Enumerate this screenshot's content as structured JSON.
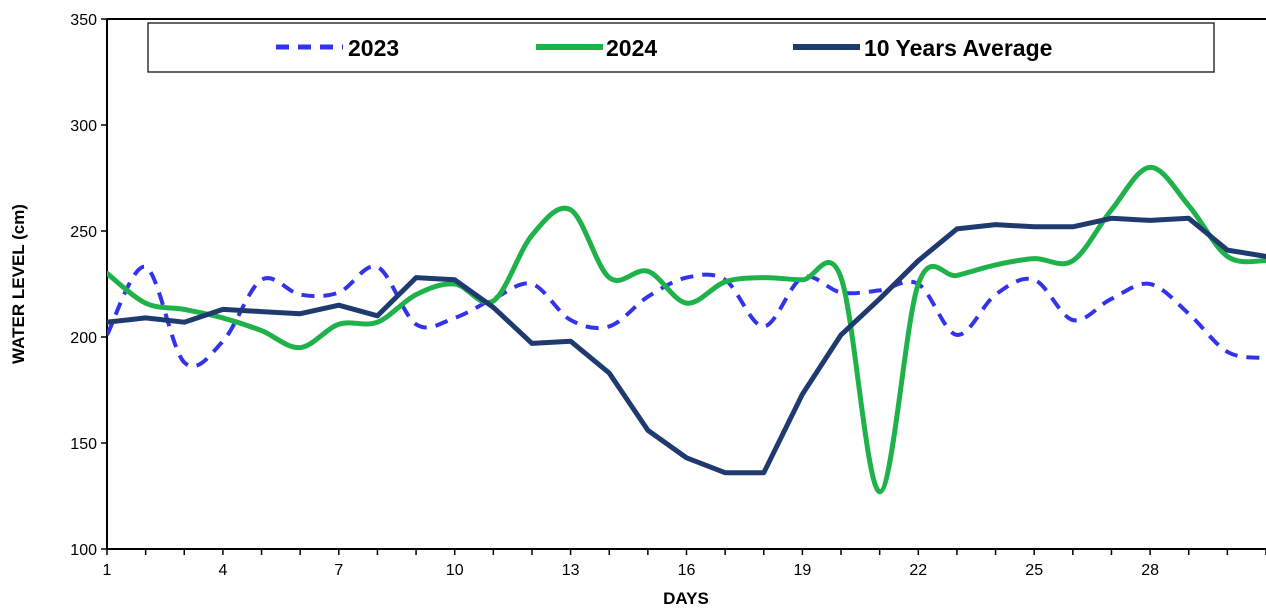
{
  "chart_data": {
    "type": "line",
    "title": "",
    "xlabel": "DAYS",
    "ylabel": "WATER LEVEL (cm)",
    "xlim": [
      1,
      31
    ],
    "ylim": [
      100,
      350
    ],
    "xticks": [
      1,
      4,
      7,
      10,
      13,
      16,
      19,
      22,
      25,
      28
    ],
    "yticks": [
      100,
      150,
      200,
      250,
      300,
      350
    ],
    "grid": false,
    "legend_position": "top",
    "x": [
      1,
      2,
      3,
      4,
      5,
      6,
      7,
      8,
      9,
      10,
      11,
      12,
      13,
      14,
      15,
      16,
      17,
      18,
      19,
      20,
      21,
      22,
      23,
      24,
      25,
      26,
      27,
      28,
      29,
      30,
      31
    ],
    "series": [
      {
        "name": "2023",
        "color": "#3333ee",
        "style": "dashed",
        "values": [
          201,
          233,
          188,
          198,
          227,
          220,
          221,
          233,
          206,
          209,
          218,
          225,
          208,
          205,
          219,
          228,
          227,
          205,
          228,
          221,
          222,
          225,
          201,
          220,
          227,
          208,
          218,
          225,
          211,
          193,
          190
        ]
      },
      {
        "name": "2024",
        "color": "#1fb24a",
        "style": "solid",
        "values": [
          230,
          216,
          213,
          209,
          203,
          195,
          206,
          207,
          220,
          225,
          217,
          248,
          260,
          228,
          231,
          216,
          226,
          228,
          227,
          228,
          127,
          225,
          229,
          234,
          237,
          236,
          260,
          280,
          262,
          238,
          236
        ]
      },
      {
        "name": "10 Years Average",
        "color": "#1f3a6e",
        "style": "solid",
        "values": [
          207,
          209,
          207,
          213,
          212,
          211,
          215,
          210,
          228,
          227,
          214,
          197,
          198,
          183,
          156,
          143,
          136,
          136,
          173,
          201,
          218,
          236,
          251,
          253,
          252,
          252,
          256,
          255,
          256,
          241,
          238
        ]
      }
    ]
  }
}
